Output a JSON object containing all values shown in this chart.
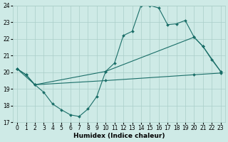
{
  "xlabel": "Humidex (Indice chaleur)",
  "ylabel": "",
  "x_min": 0,
  "x_max": 23,
  "y_min": 17,
  "y_max": 24,
  "background_color": "#ceeae6",
  "grid_color": "#aacec8",
  "line_color": "#1a6e68",
  "line1_x": [
    0,
    1,
    2,
    3,
    4,
    5,
    6,
    7,
    8,
    9,
    10,
    11,
    12,
    13,
    14,
    15,
    16,
    17,
    18,
    19,
    20,
    21,
    22,
    23
  ],
  "line1_y": [
    20.2,
    19.85,
    19.25,
    18.8,
    18.1,
    17.75,
    17.45,
    17.35,
    17.8,
    18.55,
    20.05,
    20.55,
    22.2,
    22.45,
    24.0,
    24.0,
    23.85,
    22.85,
    22.9,
    23.1,
    22.1,
    21.55,
    20.75,
    20.05
  ],
  "line2_x": [
    0,
    2,
    10,
    20,
    21,
    23
  ],
  "line2_y": [
    20.2,
    19.25,
    20.05,
    22.1,
    21.55,
    20.05
  ],
  "line3_x": [
    0,
    1,
    2,
    10,
    20,
    23
  ],
  "line3_y": [
    20.2,
    19.85,
    19.25,
    19.5,
    19.85,
    19.95
  ],
  "tick_fontsize": 5.5,
  "label_fontsize": 6.5
}
